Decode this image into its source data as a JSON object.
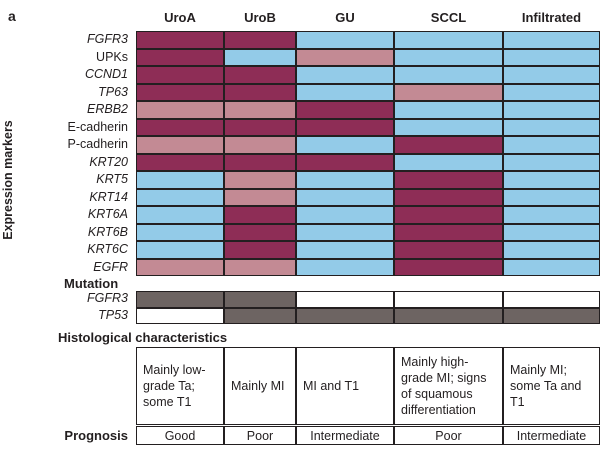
{
  "panel_label": "a",
  "y_axis_label": "Expression markers",
  "columns": [
    "UroA",
    "UroB",
    "GU",
    "SCCL",
    "Infiltrated"
  ],
  "legend_colors": {
    "high": "#8e2d56",
    "intermediate": "#c38a94",
    "low": "#93cbe8",
    "mutated": "#6d6462",
    "wild_type": "#ffffff"
  },
  "expression_markers": [
    {
      "name": "FGFR3",
      "italic": true,
      "levels": [
        "high",
        "high",
        "low",
        "low",
        "low"
      ]
    },
    {
      "name": "UPKs",
      "italic": false,
      "levels": [
        "high",
        "low",
        "intermediate",
        "low",
        "low"
      ]
    },
    {
      "name": "CCND1",
      "italic": true,
      "levels": [
        "high",
        "high",
        "low",
        "low",
        "low"
      ]
    },
    {
      "name": "TP63",
      "italic": true,
      "levels": [
        "high",
        "high",
        "low",
        "intermediate",
        "low"
      ]
    },
    {
      "name": "ERBB2",
      "italic": true,
      "levels": [
        "intermediate",
        "intermediate",
        "high",
        "low",
        "low"
      ]
    },
    {
      "name": "E-cadherin",
      "italic": false,
      "levels": [
        "high",
        "high",
        "high",
        "low",
        "low"
      ]
    },
    {
      "name": "P-cadherin",
      "italic": false,
      "levels": [
        "intermediate",
        "intermediate",
        "low",
        "high",
        "low"
      ]
    },
    {
      "name": "KRT20",
      "italic": true,
      "levels": [
        "high",
        "high",
        "high",
        "low",
        "low"
      ]
    },
    {
      "name": "KRT5",
      "italic": true,
      "levels": [
        "low",
        "intermediate",
        "low",
        "high",
        "low"
      ]
    },
    {
      "name": "KRT14",
      "italic": true,
      "levels": [
        "low",
        "intermediate",
        "low",
        "high",
        "low"
      ]
    },
    {
      "name": "KRT6A",
      "italic": true,
      "levels": [
        "low",
        "high",
        "low",
        "high",
        "low"
      ]
    },
    {
      "name": "KRT6B",
      "italic": true,
      "levels": [
        "low",
        "high",
        "low",
        "high",
        "low"
      ]
    },
    {
      "name": "KRT6C",
      "italic": true,
      "levels": [
        "low",
        "high",
        "low",
        "high",
        "low"
      ]
    },
    {
      "name": "EGFR",
      "italic": true,
      "levels": [
        "intermediate",
        "intermediate",
        "low",
        "high",
        "low"
      ]
    }
  ],
  "mutation": {
    "title": "Mutation",
    "rows": [
      {
        "name": "FGFR3",
        "italic": true,
        "status": [
          "mutated",
          "mutated",
          "wild_type",
          "wild_type",
          "wild_type"
        ]
      },
      {
        "name": "TP53",
        "italic": true,
        "status": [
          "wild_type",
          "mutated",
          "mutated",
          "mutated",
          "mutated"
        ]
      }
    ]
  },
  "histology": {
    "title": "Histological characteristics",
    "cells": [
      "Mainly low-grade Ta; some T1",
      "Mainly MI",
      "MI and T1",
      "Mainly high-grade MI; signs of squamous differentiation",
      "Mainly MI; some Ta and T1"
    ]
  },
  "prognosis": {
    "title": "Prognosis",
    "cells": [
      "Good",
      "Poor",
      "Intermediate",
      "Poor",
      "Intermediate"
    ]
  }
}
